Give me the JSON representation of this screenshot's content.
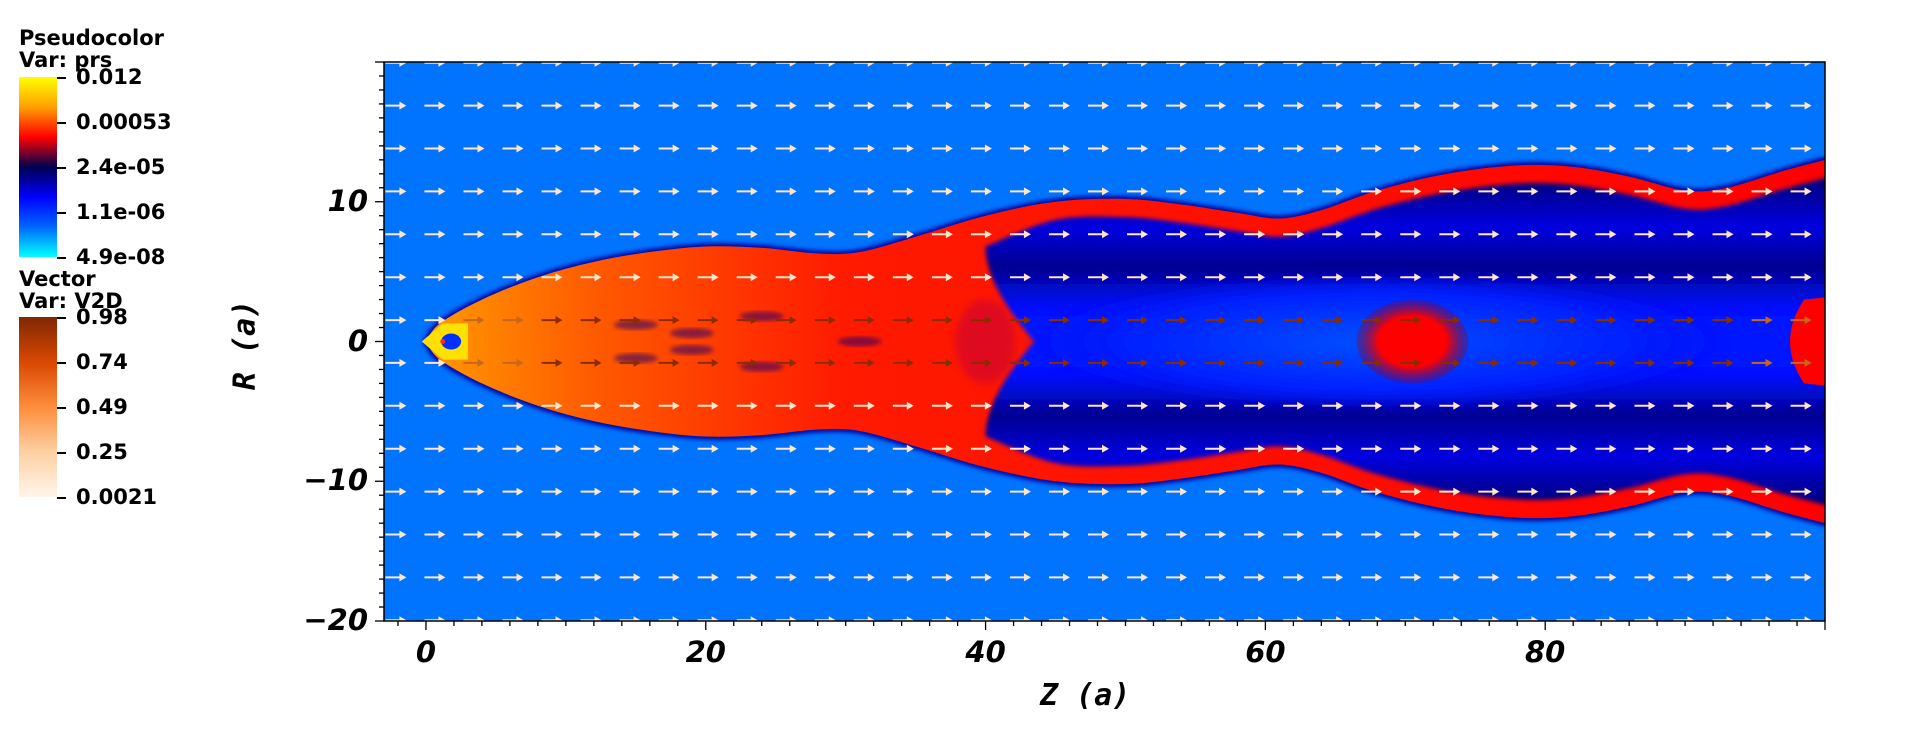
{
  "chart_data": {
    "type": "heatmap",
    "plot_kind": "pseudocolor with vector overlay",
    "xlabel": "Z (a)",
    "ylabel": "R (a)",
    "xlim": [
      -3,
      100
    ],
    "ylim": [
      -20,
      20
    ],
    "x_ticks": [
      0,
      20,
      40,
      60,
      80
    ],
    "x_tick_labels": [
      "0",
      "20",
      "40",
      "60",
      "80"
    ],
    "y_ticks": [
      10,
      0,
      -10,
      -20
    ],
    "y_tick_labels": [
      "10",
      "0",
      "−10",
      "−20"
    ],
    "background_color": "#0073ff",
    "pseudocolor_legend": {
      "title": "Pseudocolor",
      "var": "Var: prs",
      "labels": [
        "0.012",
        "0.00053",
        "2.4e-05",
        "1.1e-06",
        "4.9e-08"
      ],
      "colors": [
        "#ffff00",
        "#ffa000",
        "#ff0000",
        "#000050",
        "#0000ff",
        "#0066ff",
        "#00ffff"
      ]
    },
    "vector_legend": {
      "title": "Vector",
      "var": "Var: V2D",
      "labels": [
        "0.98",
        "0.74",
        "0.49",
        "0.25",
        "0.0021"
      ],
      "colors": [
        "#7f2704",
        "#d94801",
        "#fd8d3c",
        "#fdd0a2",
        "#fff5eb"
      ]
    },
    "jet_boundary_upper": [
      [
        0,
        0
      ],
      [
        1,
        1.3
      ],
      [
        4,
        3
      ],
      [
        8,
        4.6
      ],
      [
        12,
        5.7
      ],
      [
        16,
        6.4
      ],
      [
        20,
        6.8
      ],
      [
        24,
        6.7
      ],
      [
        28,
        6.3
      ],
      [
        31,
        6.4
      ],
      [
        35,
        7.5
      ],
      [
        40,
        9
      ],
      [
        45,
        10
      ],
      [
        50,
        10.2
      ],
      [
        54,
        9.8
      ],
      [
        58,
        9.2
      ],
      [
        61,
        8.8
      ],
      [
        64,
        9.4
      ],
      [
        68,
        10.8
      ],
      [
        73,
        12
      ],
      [
        78,
        12.6
      ],
      [
        82,
        12.5
      ],
      [
        86,
        11.8
      ],
      [
        90,
        10.8
      ],
      [
        93,
        11
      ],
      [
        97,
        12.2
      ],
      [
        100,
        13
      ]
    ],
    "vector_grid": {
      "dz": 2.79,
      "dr": 3.07,
      "z0": -2.9,
      "r_offset": 1.53,
      "fast_core_halfwidth": 2,
      "fast_core_z": [
        6,
        93
      ]
    }
  }
}
